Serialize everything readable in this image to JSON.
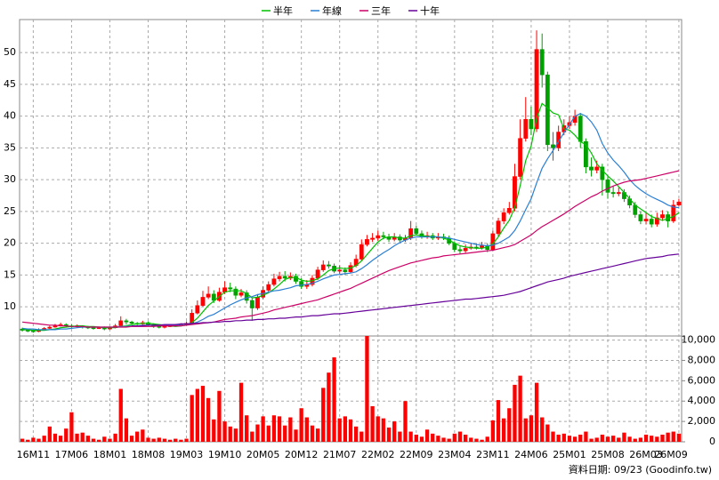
{
  "chart_data": {
    "type": "candlestick",
    "legend": "top",
    "grid": true,
    "up_color": "#ff0000",
    "down_color": "#00a000",
    "volume_color": "#ff0000",
    "source": "資料日期: 09/23  (Goodinfo.tw)",
    "categories": [
      null,
      null,
      "16M11",
      null,
      null,
      null,
      null,
      null,
      null,
      "17M06",
      null,
      null,
      null,
      null,
      null,
      null,
      "18M01",
      null,
      null,
      null,
      null,
      null,
      null,
      "18M08",
      null,
      null,
      null,
      null,
      null,
      null,
      "19M03",
      null,
      null,
      null,
      null,
      null,
      null,
      "19M10",
      null,
      null,
      null,
      null,
      null,
      null,
      "20M05",
      null,
      null,
      null,
      null,
      null,
      null,
      "20M12",
      null,
      null,
      null,
      null,
      null,
      null,
      "21M07",
      null,
      null,
      null,
      null,
      null,
      null,
      "22M02",
      null,
      null,
      null,
      null,
      null,
      null,
      "22M09",
      null,
      null,
      null,
      null,
      null,
      null,
      "23M04",
      null,
      null,
      null,
      null,
      null,
      null,
      "23M11",
      null,
      null,
      null,
      null,
      null,
      null,
      "24M06",
      null,
      null,
      null,
      null,
      null,
      null,
      "25M01",
      null,
      null,
      null,
      null,
      null,
      null,
      "25M08",
      null,
      null,
      null,
      null,
      null,
      null,
      "26M03",
      null,
      null,
      null,
      null,
      null,
      "26M09"
    ],
    "open": [
      6.5,
      6.3,
      6.2,
      6.1,
      6.4,
      6.6,
      6.8,
      7.0,
      7.2,
      7.0,
      6.9,
      7.0,
      6.8,
      6.7,
      6.6,
      6.7,
      6.5,
      6.7,
      7.0,
      7.8,
      7.6,
      7.4,
      7.3,
      7.5,
      7.2,
      6.9,
      6.8,
      6.9,
      7.0,
      7.1,
      7.2,
      7.4,
      9.0,
      10.2,
      11.5,
      12.0,
      11.0,
      12.3,
      13.0,
      12.8,
      11.8,
      12.2,
      11.0,
      9.8,
      11.5,
      12.6,
      13.5,
      14.4,
      14.8,
      14.5,
      14.8,
      14.0,
      13.2,
      13.5,
      14.5,
      15.8,
      16.6,
      16.4,
      15.6,
      15.8,
      15.5,
      16.5,
      17.5,
      19.8,
      20.6,
      20.8,
      21.2,
      21.0,
      20.6,
      21.0,
      20.5,
      20.8,
      22.3,
      21.5,
      21.0,
      21.2,
      20.8,
      21.0,
      20.8,
      20.0,
      19.0,
      18.8,
      19.2,
      19.4,
      19.3,
      19.6,
      19.0,
      21.5,
      23.5,
      24.8,
      25.5,
      30.5,
      36.5,
      39.5,
      38.0,
      50.5,
      46.5,
      35.5,
      35.0,
      37.5,
      38.5,
      39.0,
      40.0,
      36.0,
      32.0,
      31.5,
      32.0,
      30.0,
      28.0,
      27.8,
      28.0,
      27.0,
      26.0,
      24.5,
      23.5,
      23.8,
      23.0,
      24.0,
      24.5,
      23.5,
      26.0
    ],
    "high": [
      6.7,
      6.5,
      6.4,
      6.6,
      6.8,
      7.0,
      7.3,
      7.5,
      7.4,
      7.2,
      7.2,
      7.1,
      7.0,
      6.9,
      6.9,
      6.9,
      6.9,
      7.3,
      8.5,
      8.1,
      7.8,
      7.6,
      7.8,
      7.7,
      7.4,
      7.1,
      7.1,
      7.2,
      7.3,
      7.4,
      7.7,
      9.6,
      11.0,
      12.5,
      13.2,
      12.6,
      13.0,
      14.0,
      13.8,
      13.2,
      12.8,
      12.6,
      11.5,
      12.0,
      13.2,
      14.0,
      15.2,
      15.5,
      15.6,
      15.4,
      15.2,
      14.5,
      14.2,
      15.0,
      16.3,
      17.3,
      17.2,
      16.8,
      16.5,
      16.2,
      17.0,
      18.2,
      20.6,
      21.3,
      21.6,
      22.0,
      21.8,
      21.5,
      21.6,
      21.4,
      21.3,
      23.5,
      22.8,
      22.0,
      21.8,
      21.6,
      21.6,
      21.5,
      21.2,
      20.3,
      19.5,
      19.8,
      20.0,
      20.0,
      20.2,
      20.0,
      22.0,
      24.0,
      25.5,
      26.5,
      32.5,
      39.5,
      43.0,
      41.5,
      53.5,
      53.0,
      47.0,
      37.5,
      38.5,
      39.5,
      40.0,
      41.0,
      40.5,
      36.5,
      33.5,
      33.0,
      32.5,
      30.5,
      29.0,
      28.8,
      28.5,
      27.5,
      26.5,
      25.0,
      24.8,
      24.5,
      24.8,
      25.2,
      25.0,
      26.8,
      27.0
    ],
    "low": [
      6.1,
      6.0,
      5.9,
      6.0,
      6.3,
      6.5,
      6.7,
      6.9,
      6.8,
      6.7,
      6.7,
      6.6,
      6.5,
      6.4,
      6.5,
      6.3,
      6.4,
      6.6,
      6.9,
      7.2,
      7.2,
      7.1,
      7.1,
      7.0,
      6.7,
      6.6,
      6.6,
      6.8,
      6.9,
      7.0,
      7.0,
      7.2,
      8.8,
      10.0,
      11.2,
      10.6,
      10.8,
      12.0,
      12.3,
      11.2,
      11.5,
      10.5,
      7.8,
      9.5,
      11.2,
      12.3,
      13.2,
      14.0,
      14.0,
      14.2,
      13.6,
      12.8,
      12.8,
      13.2,
      14.2,
      15.5,
      16.0,
      15.3,
      15.2,
      15.0,
      15.3,
      16.2,
      17.2,
      19.5,
      20.2,
      20.4,
      20.6,
      20.2,
      20.3,
      20.2,
      20.2,
      20.5,
      21.2,
      20.7,
      20.7,
      20.5,
      20.5,
      20.5,
      19.7,
      18.6,
      18.3,
      18.5,
      19.0,
      19.0,
      19.0,
      18.6,
      18.8,
      21.0,
      23.0,
      24.5,
      25.0,
      30.0,
      36.0,
      37.0,
      37.5,
      44.5,
      34.5,
      33.0,
      34.5,
      37.0,
      38.0,
      38.5,
      35.0,
      31.0,
      30.5,
      31.0,
      27.5,
      27.0,
      27.2,
      27.4,
      26.5,
      25.5,
      24.0,
      23.0,
      23.0,
      22.5,
      22.6,
      23.5,
      22.5,
      23.2,
      25.8
    ],
    "close": [
      6.3,
      6.2,
      6.1,
      6.4,
      6.6,
      6.8,
      7.0,
      7.2,
      7.0,
      6.9,
      7.0,
      6.8,
      6.7,
      6.6,
      6.7,
      6.5,
      6.7,
      7.0,
      7.8,
      7.6,
      7.4,
      7.3,
      7.5,
      7.2,
      6.9,
      6.8,
      6.9,
      7.0,
      7.1,
      7.2,
      7.4,
      9.0,
      10.2,
      11.5,
      12.0,
      11.0,
      12.3,
      13.0,
      12.8,
      11.8,
      12.2,
      11.0,
      9.8,
      11.5,
      12.6,
      13.5,
      14.4,
      14.8,
      14.5,
      14.8,
      14.0,
      13.2,
      13.5,
      14.5,
      15.8,
      16.6,
      16.4,
      15.6,
      15.8,
      15.5,
      16.5,
      17.5,
      19.8,
      20.6,
      20.8,
      21.2,
      21.0,
      20.6,
      21.0,
      20.5,
      20.8,
      22.3,
      21.5,
      21.0,
      21.2,
      20.8,
      21.0,
      20.8,
      20.0,
      19.0,
      18.8,
      19.2,
      19.4,
      19.3,
      19.6,
      19.0,
      21.5,
      23.5,
      24.8,
      25.5,
      30.5,
      36.5,
      39.5,
      38.0,
      50.5,
      46.5,
      35.5,
      35.0,
      37.5,
      38.5,
      39.0,
      40.0,
      36.0,
      32.0,
      31.5,
      32.0,
      30.0,
      28.0,
      27.8,
      28.0,
      27.0,
      26.0,
      24.5,
      23.5,
      23.8,
      23.0,
      24.0,
      24.5,
      23.5,
      26.0,
      26.5
    ],
    "volume": [
      300,
      200,
      400,
      300,
      600,
      1500,
      800,
      600,
      1300,
      2900,
      800,
      900,
      600,
      300,
      200,
      500,
      300,
      800,
      5200,
      2300,
      600,
      1000,
      1200,
      400,
      300,
      400,
      300,
      200,
      300,
      200,
      300,
      4600,
      5200,
      5500,
      4300,
      2200,
      5000,
      2000,
      1500,
      1300,
      5800,
      2600,
      1000,
      1700,
      2500,
      1600,
      2600,
      2500,
      1600,
      2400,
      1200,
      3300,
      2400,
      1600,
      1300,
      5300,
      6800,
      8300,
      2300,
      2500,
      2200,
      1500,
      1000,
      10400,
      3500,
      2500,
      2300,
      1400,
      2000,
      1000,
      4000,
      1000,
      700,
      500,
      1200,
      800,
      600,
      400,
      300,
      800,
      1000,
      700,
      400,
      300,
      200,
      500,
      2100,
      4100,
      2300,
      3300,
      5600,
      6500,
      2300,
      2600,
      5800,
      2400,
      1700,
      1000,
      700,
      800,
      600,
      500,
      700,
      1000,
      300,
      400,
      700,
      500,
      600,
      400,
      900,
      500,
      300,
      400,
      700,
      600,
      500,
      700,
      900,
      1000,
      800
    ],
    "series": [
      {
        "name": "半年",
        "color": "#00c000",
        "values": [
          6.4,
          6.4,
          6.3,
          6.3,
          6.3,
          6.4,
          6.5,
          6.7,
          6.8,
          6.9,
          7.0,
          7.0,
          6.9,
          6.9,
          6.8,
          6.7,
          6.7,
          6.7,
          6.9,
          7.0,
          7.2,
          7.3,
          7.4,
          7.4,
          7.3,
          7.2,
          7.1,
          7.0,
          6.9,
          7.0,
          7.1,
          7.5,
          8.2,
          9.2,
          10.2,
          10.9,
          11.6,
          12.3,
          12.5,
          12.5,
          12.5,
          12.1,
          11.4,
          11.5,
          11.8,
          12.2,
          12.8,
          13.5,
          14.3,
          14.6,
          14.6,
          14.2,
          14.0,
          14.1,
          14.4,
          15.0,
          15.7,
          16.0,
          16.1,
          16.0,
          16.1,
          16.5,
          17.2,
          18.2,
          19.2,
          20.2,
          20.8,
          21.0,
          21.0,
          20.8,
          20.8,
          21.2,
          21.3,
          21.2,
          21.1,
          21.0,
          21.0,
          20.8,
          20.5,
          20.0,
          19.6,
          19.4,
          19.3,
          19.2,
          19.2,
          19.4,
          19.9,
          21.0,
          22.4,
          23.6,
          25.6,
          29.1,
          33.0,
          35.3,
          39.7,
          42.0,
          41.3,
          40.5,
          40.2,
          38.0,
          37.8,
          37.0,
          36.0,
          35.5,
          34.2,
          32.5,
          31.5,
          30.6,
          29.8,
          28.9,
          28.0,
          27.0,
          26.0,
          25.4,
          24.8,
          24.2,
          23.9,
          23.6,
          23.9,
          24.2,
          24.8
        ]
      },
      {
        "name": "年線",
        "color": "#2a7fd4",
        "values": [
          6.6,
          6.5,
          6.5,
          6.4,
          6.4,
          6.4,
          6.4,
          6.5,
          6.5,
          6.6,
          6.7,
          6.8,
          6.8,
          6.8,
          6.8,
          6.8,
          6.8,
          6.8,
          6.9,
          6.9,
          7.0,
          7.0,
          7.1,
          7.1,
          7.1,
          7.1,
          7.1,
          7.1,
          7.1,
          7.1,
          7.1,
          7.3,
          7.6,
          8.0,
          8.5,
          8.8,
          9.3,
          9.8,
          10.3,
          10.7,
          11.1,
          11.4,
          11.6,
          11.9,
          12.1,
          12.3,
          12.5,
          12.6,
          12.8,
          13.0,
          13.3,
          13.4,
          13.5,
          13.7,
          14.0,
          14.4,
          14.7,
          15.0,
          15.1,
          15.2,
          15.3,
          15.5,
          16.0,
          16.6,
          17.3,
          17.9,
          18.5,
          19.0,
          19.6,
          20.1,
          20.5,
          20.8,
          21.0,
          21.0,
          21.0,
          21.0,
          21.0,
          20.9,
          20.8,
          20.6,
          20.4,
          20.2,
          20.0,
          19.8,
          19.7,
          19.6,
          19.7,
          20.0,
          20.5,
          21.0,
          22.0,
          23.5,
          25.3,
          27.0,
          29.5,
          31.8,
          33.3,
          34.6,
          36.0,
          37.4,
          38.7,
          40.0,
          40.4,
          40.0,
          39.1,
          37.8,
          35.7,
          34.2,
          33.1,
          32.2,
          31.2,
          30.0,
          29.1,
          28.4,
          27.8,
          27.3,
          26.9,
          26.5,
          26.0,
          25.7,
          25.6
        ]
      },
      {
        "name": "三年",
        "color": "#cc0066",
        "values": [
          7.6,
          7.5,
          7.4,
          7.3,
          7.2,
          7.1,
          7.1,
          7.0,
          7.0,
          6.9,
          6.9,
          6.9,
          6.8,
          6.8,
          6.8,
          6.8,
          6.8,
          6.8,
          6.8,
          6.8,
          6.9,
          6.9,
          6.9,
          6.9,
          6.9,
          7.0,
          7.0,
          7.0,
          7.0,
          7.0,
          7.1,
          7.2,
          7.3,
          7.4,
          7.5,
          7.6,
          7.8,
          8.0,
          8.1,
          8.2,
          8.4,
          8.5,
          8.6,
          8.8,
          9.0,
          9.2,
          9.5,
          9.7,
          9.9,
          10.1,
          10.3,
          10.5,
          10.7,
          10.9,
          11.1,
          11.4,
          11.7,
          12.0,
          12.3,
          12.6,
          12.9,
          13.3,
          13.7,
          14.1,
          14.5,
          14.9,
          15.3,
          15.7,
          16.0,
          16.3,
          16.6,
          16.9,
          17.1,
          17.3,
          17.5,
          17.7,
          17.8,
          18.0,
          18.1,
          18.2,
          18.3,
          18.4,
          18.5,
          18.6,
          18.7,
          18.8,
          18.9,
          19.1,
          19.3,
          19.5,
          19.8,
          20.3,
          20.8,
          21.3,
          22.0,
          22.6,
          23.1,
          23.6,
          24.1,
          24.6,
          25.2,
          25.8,
          26.3,
          26.8,
          27.3,
          27.7,
          28.2,
          28.6,
          29.0,
          29.3,
          29.6,
          29.8,
          29.9,
          30.0,
          30.2,
          30.4,
          30.6,
          30.8,
          31.0,
          31.2,
          31.4
        ]
      },
      {
        "name": "十年",
        "color": "#660099",
        "values": [
          null,
          null,
          null,
          null,
          null,
          null,
          null,
          null,
          null,
          null,
          null,
          null,
          null,
          null,
          null,
          null,
          null,
          null,
          null,
          null,
          7.0,
          7.0,
          7.0,
          7.1,
          7.1,
          7.1,
          7.2,
          7.2,
          7.2,
          7.3,
          7.3,
          7.4,
          7.4,
          7.5,
          7.5,
          7.6,
          7.6,
          7.7,
          7.7,
          7.8,
          7.8,
          7.9,
          7.9,
          8.0,
          8.0,
          8.1,
          8.1,
          8.2,
          8.2,
          8.3,
          8.4,
          8.4,
          8.5,
          8.6,
          8.6,
          8.7,
          8.8,
          8.9,
          8.9,
          9.0,
          9.1,
          9.2,
          9.3,
          9.4,
          9.5,
          9.6,
          9.7,
          9.8,
          9.9,
          10.0,
          10.1,
          10.2,
          10.3,
          10.4,
          10.5,
          10.6,
          10.7,
          10.8,
          10.9,
          11.0,
          11.1,
          11.2,
          11.2,
          11.3,
          11.4,
          11.5,
          11.6,
          11.7,
          11.8,
          12.0,
          12.2,
          12.4,
          12.7,
          13.0,
          13.3,
          13.6,
          13.9,
          14.1,
          14.3,
          14.5,
          14.8,
          15.0,
          15.2,
          15.4,
          15.6,
          15.8,
          16.0,
          16.2,
          16.4,
          16.6,
          16.8,
          17.0,
          17.2,
          17.4,
          17.6,
          17.7,
          17.8,
          17.9,
          18.1,
          18.2,
          18.3
        ]
      }
    ],
    "ylim": [
      5.4,
      55.2
    ],
    "yticks": [
      10,
      15,
      20,
      25,
      30,
      35,
      40,
      45,
      50
    ],
    "y2lim": [
      0,
      10400
    ],
    "y2ticks": [
      0,
      {
        "value": 2000,
        "label": "2,000"
      },
      {
        "value": 4000,
        "label": "4,000"
      },
      {
        "value": 6000,
        "label": "6,000"
      },
      {
        "value": 8000,
        "label": "8,000"
      },
      {
        "value": 10000,
        "label": "10,000"
      }
    ]
  }
}
